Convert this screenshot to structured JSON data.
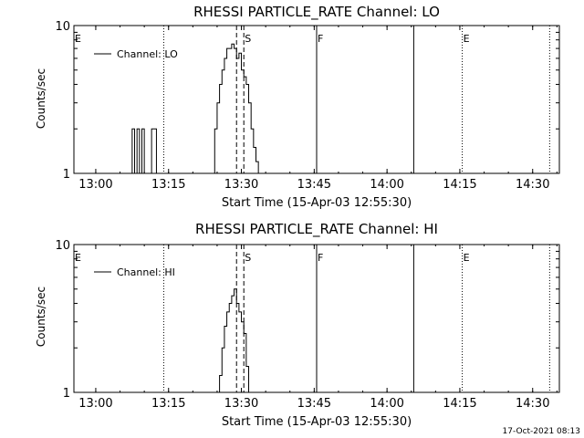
{
  "footer": {
    "timestamp": "17-Oct-2021 08:13"
  },
  "chart_data": [
    {
      "type": "line",
      "title": "RHESSI PARTICLE_RATE Channel: LO",
      "xlabel": "Start Time (15-Apr-03 12:55:30)",
      "ylabel": "Counts/sec",
      "yscale": "log",
      "ylim": [
        1,
        10
      ],
      "xlim": [
        "12:55:30",
        "14:35:30"
      ],
      "x_ticks": [
        "13:00",
        "13:15",
        "13:30",
        "13:45",
        "14:00",
        "14:15",
        "14:30"
      ],
      "y_ticks": [
        "1",
        "10"
      ],
      "legend": {
        "placement": "top-left",
        "entries": [
          "Channel: LO"
        ]
      },
      "color": "#000000",
      "markers": [
        {
          "time": "12:55:30",
          "label": "E",
          "style": "dotted"
        },
        {
          "time": "13:14:00",
          "label": "",
          "style": "dotted"
        },
        {
          "time": "13:29:00",
          "label": "",
          "style": "dashed"
        },
        {
          "time": "13:30:30",
          "label": "S",
          "style": "dashed"
        },
        {
          "time": "13:45:30",
          "label": "F",
          "style": "solid"
        },
        {
          "time": "14:05:30",
          "label": "",
          "style": "solid"
        },
        {
          "time": "14:15:30",
          "label": "E",
          "style": "dotted"
        },
        {
          "time": "14:33:30",
          "label": "",
          "style": "dotted"
        }
      ],
      "series": [
        {
          "name": "Channel: LO",
          "time": [
            "13:07:00",
            "13:07:30",
            "13:08:00",
            "13:08:30",
            "13:09:00",
            "13:09:30",
            "13:10:00",
            "13:11:00",
            "13:11:30",
            "13:12:00",
            "13:12:30",
            "13:24:00",
            "13:24:30",
            "13:25:00",
            "13:25:30",
            "13:26:00",
            "13:26:30",
            "13:27:00",
            "13:27:30",
            "13:28:00",
            "13:28:30",
            "13:29:00",
            "13:29:30",
            "13:30:00",
            "13:30:30",
            "13:31:00",
            "13:31:30",
            "13:32:00",
            "13:32:30",
            "13:33:00",
            "13:33:30"
          ],
          "values": [
            1,
            2,
            1,
            2,
            1,
            2,
            1,
            1,
            2,
            2,
            1,
            1,
            2,
            3,
            4,
            5,
            6,
            7,
            7,
            7.5,
            7,
            6,
            6.5,
            5,
            4.5,
            4,
            3,
            2,
            1.5,
            1.2,
            1
          ]
        }
      ]
    },
    {
      "type": "line",
      "title": "RHESSI PARTICLE_RATE Channel: HI",
      "xlabel": "Start Time (15-Apr-03 12:55:30)",
      "ylabel": "Counts/sec",
      "yscale": "log",
      "ylim": [
        1,
        10
      ],
      "xlim": [
        "12:55:30",
        "14:35:30"
      ],
      "x_ticks": [
        "13:00",
        "13:15",
        "13:30",
        "13:45",
        "14:00",
        "14:15",
        "14:30"
      ],
      "y_ticks": [
        "1",
        "10"
      ],
      "legend": {
        "placement": "top-left",
        "entries": [
          "Channel: HI"
        ]
      },
      "color": "#000000",
      "markers": [
        {
          "time": "12:55:30",
          "label": "E",
          "style": "dotted"
        },
        {
          "time": "13:14:00",
          "label": "",
          "style": "dotted"
        },
        {
          "time": "13:29:00",
          "label": "",
          "style": "dashed"
        },
        {
          "time": "13:30:30",
          "label": "S",
          "style": "dashed"
        },
        {
          "time": "13:45:30",
          "label": "F",
          "style": "solid"
        },
        {
          "time": "14:05:30",
          "label": "",
          "style": "solid"
        },
        {
          "time": "14:15:30",
          "label": "E",
          "style": "dotted"
        },
        {
          "time": "14:33:30",
          "label": "",
          "style": "dotted"
        }
      ],
      "series": [
        {
          "name": "Channel: HI",
          "time": [
            "13:25:00",
            "13:25:30",
            "13:26:00",
            "13:26:30",
            "13:27:00",
            "13:27:30",
            "13:28:00",
            "13:28:30",
            "13:29:00",
            "13:29:30",
            "13:30:00",
            "13:30:30",
            "13:31:00",
            "13:31:30"
          ],
          "values": [
            1,
            1.3,
            2,
            2.8,
            3.5,
            4,
            4.5,
            5,
            4,
            3.5,
            3,
            2.5,
            1.5,
            1
          ]
        }
      ]
    }
  ]
}
